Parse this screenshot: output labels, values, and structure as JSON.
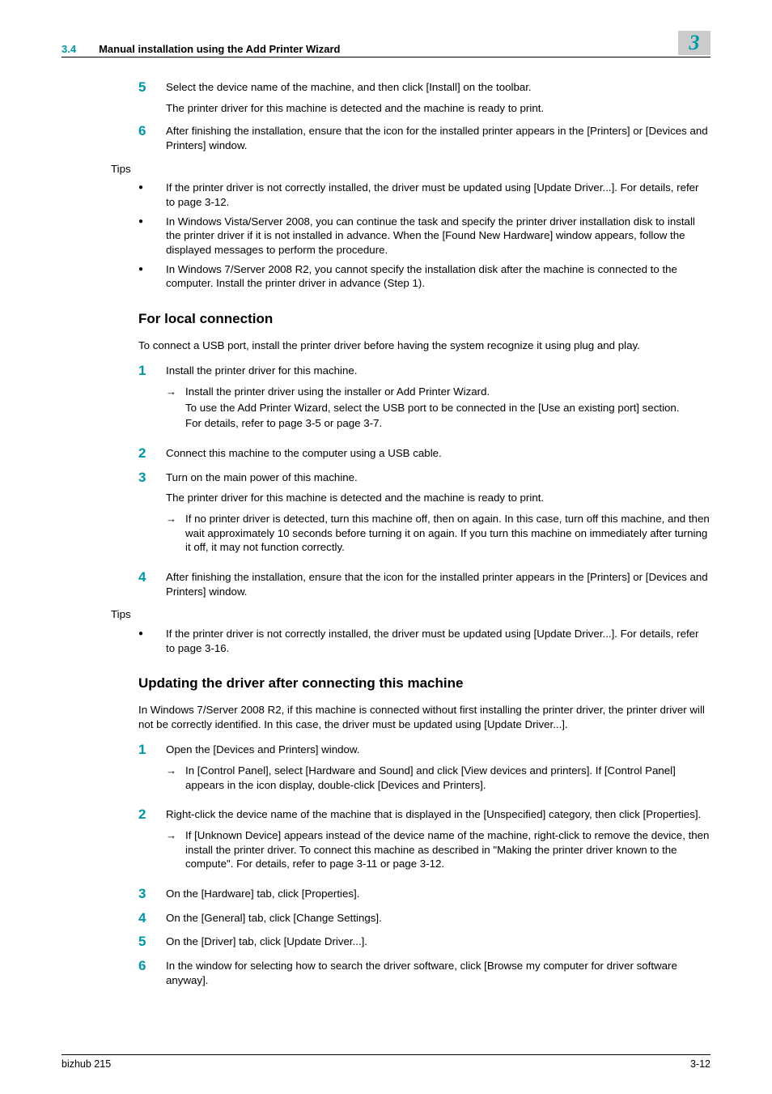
{
  "header": {
    "section_num": "3.4",
    "section_title": "Manual installation using the Add Printer Wizard",
    "chapter_num": "3"
  },
  "block1": {
    "steps": [
      {
        "n": "5",
        "paras": [
          "Select the device name of the machine, and then click [Install] on the toolbar.",
          "The printer driver for this machine is detected and the machine is ready to print."
        ]
      },
      {
        "n": "6",
        "paras": [
          "After finishing the installation, ensure that the icon for the installed printer appears in the [Printers] or [Devices and Printers] window."
        ]
      }
    ],
    "tips_label": "Tips",
    "tips": [
      "If the printer driver is not correctly installed, the driver must be updated using [Update Driver...]. For details, refer to page 3-12.",
      "In Windows Vista/Server 2008, you can continue the task and specify the printer driver installation disk to install the printer driver if it is not installed in advance. When the [Found New Hardware] window appears, follow the displayed messages to perform the procedure.",
      "In Windows 7/Server 2008 R2, you cannot specify the installation disk after the machine is connected to the computer. Install the printer driver in advance (Step 1)."
    ]
  },
  "section_local": {
    "heading": "For local connection",
    "intro": "To connect a USB port, install the printer driver before having the system recognize it using plug and play.",
    "steps": [
      {
        "n": "1",
        "paras": [
          "Install the printer driver for this machine."
        ],
        "subs": [
          {
            "lines": [
              "Install the printer driver using the installer or Add Printer Wizard.",
              "To use the Add Printer Wizard, select the USB port to be connected in the [Use an existing port] section.",
              "For details, refer to page 3-5 or page 3-7."
            ]
          }
        ]
      },
      {
        "n": "2",
        "paras": [
          "Connect this machine to the computer using a USB cable."
        ]
      },
      {
        "n": "3",
        "paras": [
          "Turn on the main power of this machine.",
          "The printer driver for this machine is detected and the machine is ready to print."
        ],
        "subs": [
          {
            "lines": [
              "If no printer driver is detected, turn this machine off, then on again. In this case, turn off this machine, and then wait approximately 10 seconds before turning it on again. If you turn this machine on immediately after turning it off, it may not function correctly."
            ]
          }
        ]
      },
      {
        "n": "4",
        "paras": [
          "After finishing the installation, ensure that the icon for the installed printer appears in the [Printers] or [Devices and Printers] window."
        ]
      }
    ],
    "tips_label": "Tips",
    "tips": [
      "If the printer driver is not correctly installed, the driver must be updated using [Update Driver...]. For details, refer to page 3-16."
    ]
  },
  "section_update": {
    "heading": "Updating the driver after connecting this machine",
    "intro": "In Windows 7/Server 2008 R2, if this machine is connected without first installing the printer driver, the printer driver will not be correctly identified. In this case, the driver must be updated using [Update Driver...].",
    "steps": [
      {
        "n": "1",
        "paras": [
          "Open the [Devices and Printers] window."
        ],
        "subs": [
          {
            "lines": [
              "In [Control Panel], select [Hardware and Sound] and click [View devices and printers]. If [Control Panel] appears in the icon display, double-click [Devices and Printers]."
            ]
          }
        ]
      },
      {
        "n": "2",
        "paras": [
          "Right-click the device name of the machine that is displayed in the [Unspecified] category, then click [Properties]."
        ],
        "subs": [
          {
            "lines": [
              "If [Unknown Device] appears instead of the device name of the machine, right-click to remove the device, then install the printer driver. To connect this machine as described in \"Making the printer driver known to the compute\". For details, refer to page 3-11 or page 3-12."
            ]
          }
        ]
      },
      {
        "n": "3",
        "paras": [
          "On the [Hardware] tab, click [Properties]."
        ]
      },
      {
        "n": "4",
        "paras": [
          "On the [General] tab, click [Change Settings]."
        ]
      },
      {
        "n": "5",
        "paras": [
          "On the [Driver] tab, click [Update Driver...]."
        ]
      },
      {
        "n": "6",
        "paras": [
          "In the window for selecting how to search the driver software, click [Browse my computer for driver software anyway]."
        ]
      }
    ]
  },
  "footer": {
    "left": "bizhub 215",
    "right": "3-12"
  },
  "glyphs": {
    "bullet": "●",
    "arrow": "→"
  },
  "colors": {
    "accent": "#0098a6",
    "chapter_bg": "#c9cbcc",
    "text": "#000000",
    "bg": "#ffffff"
  }
}
